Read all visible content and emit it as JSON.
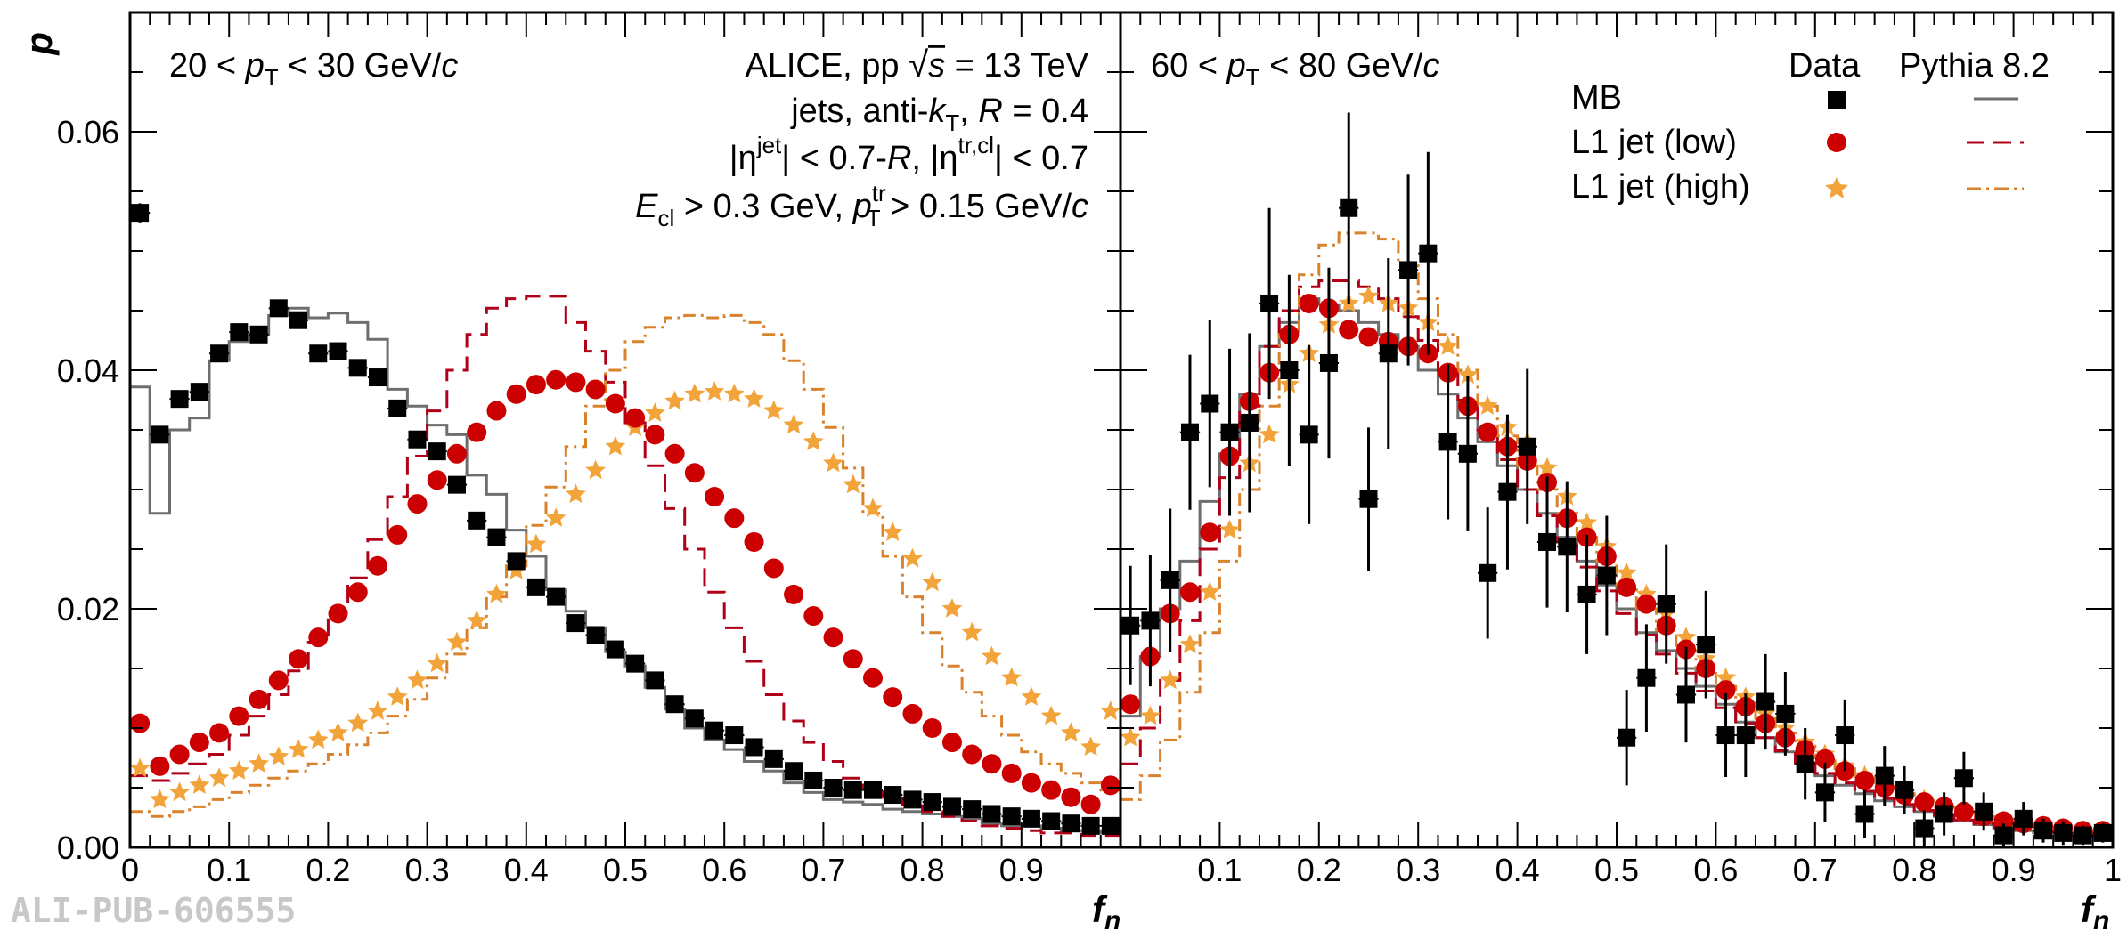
{
  "figure": {
    "watermark": "ALI-PUB-606555",
    "ylabel": "p",
    "xlabel_main": "f",
    "xlabel_sub": "n"
  },
  "annotations": {
    "left_range": "20 < pT < 30 GeV/c",
    "right_range": "60 < pT < 80 GeV/c",
    "experiment": "ALICE, pp √s = 13 TeV",
    "jets": "jets, anti-kT, R = 0.4",
    "eta": "|η^jet| < 0.7-R, |η^tr,cl| < 0.7",
    "cuts": "E_cl > 0.3 GeV, pT^tr > 0.15 GeV/c"
  },
  "legend": {
    "header_data": "Data",
    "header_mc": "Pythia 8.2",
    "entries": [
      "MB",
      "L1 jet (low)",
      "L1 jet (high)"
    ]
  },
  "colors": {
    "mb_data": "#000000",
    "mb_mc": "#6e6e6e",
    "low": "#cc0000",
    "low_mc": "#b00018",
    "high": "#f2a33a",
    "high_mc": "#d9822b"
  },
  "chart_data": [
    {
      "type": "scatter",
      "panel": "left",
      "ylabel": "p",
      "xlabel": "f_n",
      "xlim": [
        0,
        1
      ],
      "ylim": [
        0,
        0.07
      ],
      "x_ticks": [
        "0",
        "0.1",
        "0.2",
        "0.3",
        "0.4",
        "0.5",
        "0.6",
        "0.7",
        "0.8",
        "0.9"
      ],
      "y_ticks": [
        "0.00",
        "0.02",
        "0.04",
        "0.06"
      ],
      "bin_width": 0.02,
      "bin_centers": [
        0.01,
        0.03,
        0.05,
        0.07,
        0.09,
        0.11,
        0.13,
        0.15,
        0.17,
        0.19,
        0.21,
        0.23,
        0.25,
        0.27,
        0.29,
        0.31,
        0.33,
        0.35,
        0.37,
        0.39,
        0.41,
        0.43,
        0.45,
        0.47,
        0.49,
        0.51,
        0.53,
        0.55,
        0.57,
        0.59,
        0.61,
        0.63,
        0.65,
        0.67,
        0.69,
        0.71,
        0.73,
        0.75,
        0.77,
        0.79,
        0.81,
        0.83,
        0.85,
        0.87,
        0.89,
        0.91,
        0.93,
        0.95,
        0.97,
        0.99
      ],
      "series": [
        {
          "name": "MB",
          "kind": "data",
          "values": [
            0.0532,
            0.0346,
            0.0376,
            0.0382,
            0.0414,
            0.0432,
            0.043,
            0.0452,
            0.0442,
            0.0414,
            0.0416,
            0.0402,
            0.0394,
            0.0368,
            0.0342,
            0.0332,
            0.0304,
            0.0274,
            0.026,
            0.024,
            0.0218,
            0.021,
            0.0188,
            0.0178,
            0.0166,
            0.0154,
            0.014,
            0.012,
            0.0108,
            0.0098,
            0.0094,
            0.0084,
            0.0074,
            0.0064,
            0.0056,
            0.005,
            0.0048,
            0.0048,
            0.0044,
            0.004,
            0.0038,
            0.0034,
            0.0032,
            0.0028,
            0.0026,
            0.0024,
            0.0022,
            0.002,
            0.0018,
            0.0018
          ],
          "errors": [
            0.0008,
            0.0006,
            0.0006,
            0.0006,
            0.0006,
            0.0006,
            0.0006,
            0.0006,
            0.0006,
            0.0006,
            0.0006,
            0.0006,
            0.0005,
            0.0005,
            0.0005,
            0.0005,
            0.0005,
            0.0005,
            0.0005,
            0.0004,
            0.0004,
            0.0004,
            0.0004,
            0.0004,
            0.0004,
            0.0003,
            0.0003,
            0.0003,
            0.0003,
            0.0003,
            0.0003,
            0.0003,
            0.0003,
            0.0003,
            0.0003,
            0.0003,
            0.0003,
            0.0003,
            0.0003,
            0.0003,
            0.0003,
            0.0003,
            0.0003,
            0.0003,
            0.0003,
            0.0003,
            0.0003,
            0.0003,
            0.0003,
            0.0003
          ]
        },
        {
          "name": "L1 jet (low)",
          "kind": "data",
          "values": [
            0.0104,
            0.0068,
            0.0078,
            0.0088,
            0.0096,
            0.011,
            0.0124,
            0.014,
            0.0158,
            0.0176,
            0.0196,
            0.0214,
            0.0236,
            0.0262,
            0.0288,
            0.0308,
            0.033,
            0.0348,
            0.0366,
            0.038,
            0.0388,
            0.0392,
            0.039,
            0.0384,
            0.0372,
            0.036,
            0.0346,
            0.033,
            0.0314,
            0.0294,
            0.0276,
            0.0256,
            0.0234,
            0.0212,
            0.0194,
            0.0176,
            0.0158,
            0.0142,
            0.0126,
            0.0112,
            0.01,
            0.0088,
            0.0078,
            0.007,
            0.0062,
            0.0054,
            0.0048,
            0.0042,
            0.0036,
            0.0052
          ],
          "errors": []
        },
        {
          "name": "L1 jet (high)",
          "kind": "data",
          "values": [
            0.0066,
            0.004,
            0.0046,
            0.0052,
            0.0058,
            0.0064,
            0.007,
            0.0076,
            0.0082,
            0.009,
            0.0096,
            0.0104,
            0.0114,
            0.0126,
            0.014,
            0.0154,
            0.0172,
            0.019,
            0.0212,
            0.0232,
            0.0254,
            0.0276,
            0.0296,
            0.0316,
            0.0336,
            0.0352,
            0.0364,
            0.0374,
            0.038,
            0.0382,
            0.038,
            0.0376,
            0.0366,
            0.0354,
            0.034,
            0.0322,
            0.0304,
            0.0284,
            0.0264,
            0.0242,
            0.0222,
            0.02,
            0.018,
            0.016,
            0.0142,
            0.0126,
            0.011,
            0.0096,
            0.0084,
            0.0114
          ],
          "errors": []
        },
        {
          "name": "MB",
          "kind": "pythia",
          "values": [
            0.0386,
            0.028,
            0.035,
            0.036,
            0.0408,
            0.0424,
            0.043,
            0.0446,
            0.0452,
            0.0444,
            0.0448,
            0.044,
            0.0426,
            0.0384,
            0.037,
            0.0354,
            0.0346,
            0.0312,
            0.0296,
            0.0266,
            0.0244,
            0.0216,
            0.0198,
            0.0184,
            0.0164,
            0.0152,
            0.0134,
            0.0116,
            0.01,
            0.009,
            0.0082,
            0.0072,
            0.0064,
            0.0054,
            0.0046,
            0.004,
            0.0038,
            0.0036,
            0.0032,
            0.003,
            0.0028,
            0.0026,
            0.0024,
            0.002,
            0.0018,
            0.0018,
            0.0016,
            0.0014,
            0.0014,
            0.0012
          ]
        },
        {
          "name": "L1 jet (low)",
          "kind": "pythia",
          "values": [
            0.006,
            0.0056,
            0.0062,
            0.007,
            0.0078,
            0.0094,
            0.011,
            0.0128,
            0.0148,
            0.0172,
            0.0198,
            0.0226,
            0.0258,
            0.0294,
            0.0328,
            0.0366,
            0.04,
            0.043,
            0.0452,
            0.046,
            0.0462,
            0.0462,
            0.044,
            0.0416,
            0.039,
            0.0356,
            0.032,
            0.0284,
            0.025,
            0.0214,
            0.0184,
            0.0156,
            0.0128,
            0.0106,
            0.0088,
            0.0072,
            0.0058,
            0.005,
            0.0042,
            0.0036,
            0.003,
            0.0026,
            0.0022,
            0.0018,
            0.0016,
            0.0014,
            0.0012,
            0.0012,
            0.001,
            0.001
          ]
        },
        {
          "name": "L1 jet (high)",
          "kind": "pythia",
          "values": [
            0.003,
            0.0026,
            0.003,
            0.0034,
            0.004,
            0.0046,
            0.0052,
            0.0058,
            0.0064,
            0.007,
            0.0078,
            0.0086,
            0.0096,
            0.011,
            0.0124,
            0.0142,
            0.0162,
            0.0184,
            0.021,
            0.0236,
            0.027,
            0.0302,
            0.0336,
            0.037,
            0.04,
            0.0424,
            0.0436,
            0.0444,
            0.0446,
            0.0444,
            0.0446,
            0.044,
            0.043,
            0.0408,
            0.0384,
            0.0352,
            0.0318,
            0.028,
            0.0244,
            0.021,
            0.018,
            0.0152,
            0.013,
            0.011,
            0.0094,
            0.008,
            0.007,
            0.0062,
            0.0054,
            0.0048
          ]
        }
      ]
    },
    {
      "type": "scatter",
      "panel": "right",
      "ylabel": "p",
      "xlabel": "f_n",
      "xlim": [
        0,
        1
      ],
      "ylim": [
        0,
        0.07
      ],
      "x_ticks": [
        "0.1",
        "0.2",
        "0.3",
        "0.4",
        "0.5",
        "0.6",
        "0.7",
        "0.8",
        "0.9",
        "1"
      ],
      "bin_width": 0.02,
      "bin_centers": [
        0.01,
        0.03,
        0.05,
        0.07,
        0.09,
        0.11,
        0.13,
        0.15,
        0.17,
        0.19,
        0.21,
        0.23,
        0.25,
        0.27,
        0.29,
        0.31,
        0.33,
        0.35,
        0.37,
        0.39,
        0.41,
        0.43,
        0.45,
        0.47,
        0.49,
        0.51,
        0.53,
        0.55,
        0.57,
        0.59,
        0.61,
        0.63,
        0.65,
        0.67,
        0.69,
        0.71,
        0.73,
        0.75,
        0.77,
        0.79,
        0.81,
        0.83,
        0.85,
        0.87,
        0.89,
        0.91,
        0.93,
        0.95,
        0.97,
        0.99
      ],
      "series": [
        {
          "name": "MB",
          "kind": "data",
          "values": [
            0.0186,
            0.019,
            0.0224,
            0.0348,
            0.0372,
            0.0348,
            0.0356,
            0.0456,
            0.04,
            0.0346,
            0.0406,
            0.0536,
            0.0292,
            0.0414,
            0.0484,
            0.0498,
            0.034,
            0.033,
            0.023,
            0.0298,
            0.0336,
            0.0256,
            0.0252,
            0.0212,
            0.0228,
            0.0092,
            0.0142,
            0.0204,
            0.0128,
            0.017,
            0.0094,
            0.0094,
            0.0122,
            0.0112,
            0.007,
            0.0046,
            0.0094,
            0.0028,
            0.006,
            0.0048,
            0.0016,
            0.0028,
            0.0058,
            0.003,
            0.001,
            0.0024,
            0.0014,
            0.0012,
            0.001,
            0.0012
          ],
          "errors": [
            0.005,
            0.0055,
            0.006,
            0.0065,
            0.007,
            0.007,
            0.0075,
            0.008,
            0.008,
            0.0075,
            0.008,
            0.008,
            0.006,
            0.008,
            0.008,
            0.0085,
            0.0065,
            0.0065,
            0.0055,
            0.0065,
            0.0065,
            0.0055,
            0.0055,
            0.005,
            0.005,
            0.004,
            0.0045,
            0.005,
            0.004,
            0.0045,
            0.0035,
            0.0035,
            0.004,
            0.0035,
            0.003,
            0.0025,
            0.003,
            0.002,
            0.0025,
            0.002,
            0.0015,
            0.0018,
            0.0022,
            0.0016,
            0.001,
            0.0014,
            0.001,
            0.001,
            0.0008,
            0.0008
          ]
        },
        {
          "name": "L1 jet (low)",
          "kind": "data",
          "values": [
            0.012,
            0.016,
            0.0196,
            0.0214,
            0.0264,
            0.0328,
            0.0374,
            0.0398,
            0.043,
            0.0456,
            0.0452,
            0.0434,
            0.0428,
            0.0424,
            0.042,
            0.0414,
            0.0398,
            0.037,
            0.0348,
            0.0336,
            0.0324,
            0.0306,
            0.0276,
            0.026,
            0.0244,
            0.0218,
            0.0204,
            0.0186,
            0.0166,
            0.015,
            0.0132,
            0.0118,
            0.0104,
            0.0092,
            0.0082,
            0.0074,
            0.0064,
            0.0056,
            0.005,
            0.0044,
            0.0038,
            0.0034,
            0.003,
            0.0026,
            0.0022,
            0.002,
            0.0018,
            0.0016,
            0.0014,
            0.0014
          ],
          "errors": []
        },
        {
          "name": "L1 jet (high)",
          "kind": "data",
          "values": [
            0.0092,
            0.011,
            0.014,
            0.017,
            0.0214,
            0.0266,
            0.0322,
            0.0346,
            0.0388,
            0.0414,
            0.0438,
            0.0456,
            0.0462,
            0.0456,
            0.0452,
            0.044,
            0.042,
            0.0396,
            0.037,
            0.0352,
            0.034,
            0.0318,
            0.0294,
            0.0272,
            0.0252,
            0.023,
            0.0212,
            0.0196,
            0.0176,
            0.0158,
            0.0142,
            0.0126,
            0.0112,
            0.01,
            0.0088,
            0.0078,
            0.0068,
            0.006,
            0.0052,
            0.0046,
            0.004,
            0.0034,
            0.003,
            0.0026,
            0.0022,
            0.002,
            0.0018,
            0.0016,
            0.0014,
            0.0014
          ],
          "errors": []
        },
        {
          "name": "MB",
          "kind": "pythia",
          "values": [
            0.011,
            0.016,
            0.02,
            0.024,
            0.029,
            0.033,
            0.038,
            0.042,
            0.044,
            0.046,
            0.0455,
            0.045,
            0.044,
            0.043,
            0.042,
            0.04,
            0.038,
            0.036,
            0.034,
            0.032,
            0.03,
            0.028,
            0.026,
            0.024,
            0.022,
            0.02,
            0.018,
            0.0165,
            0.015,
            0.0135,
            0.012,
            0.0105,
            0.0092,
            0.008,
            0.007,
            0.006,
            0.0052,
            0.0045,
            0.0039,
            0.0034,
            0.003,
            0.0026,
            0.0022,
            0.0019,
            0.0016,
            0.0014,
            0.0012,
            0.0011,
            0.001,
            0.0009
          ]
        },
        {
          "name": "L1 jet (low)",
          "kind": "pythia",
          "values": [
            0.007,
            0.01,
            0.014,
            0.019,
            0.025,
            0.031,
            0.037,
            0.042,
            0.045,
            0.047,
            0.0475,
            0.0475,
            0.047,
            0.046,
            0.0445,
            0.0425,
            0.04,
            0.0375,
            0.035,
            0.0325,
            0.03,
            0.0278,
            0.0256,
            0.0235,
            0.0215,
            0.0196,
            0.0178,
            0.0162,
            0.0146,
            0.0131,
            0.0117,
            0.0104,
            0.0092,
            0.0081,
            0.0071,
            0.0062,
            0.0054,
            0.0047,
            0.0041,
            0.0036,
            0.0031,
            0.0027,
            0.0023,
            0.002,
            0.0017,
            0.0015,
            0.0013,
            0.0012,
            0.0011,
            0.001
          ]
        },
        {
          "name": "L1 jet (high)",
          "kind": "pythia",
          "values": [
            0.004,
            0.006,
            0.009,
            0.013,
            0.018,
            0.024,
            0.03,
            0.037,
            0.043,
            0.048,
            0.0505,
            0.0515,
            0.0515,
            0.051,
            0.049,
            0.046,
            0.043,
            0.04,
            0.037,
            0.0345,
            0.032,
            0.03,
            0.028,
            0.026,
            0.024,
            0.022,
            0.02,
            0.0182,
            0.0165,
            0.015,
            0.0135,
            0.0121,
            0.0108,
            0.0096,
            0.0085,
            0.0075,
            0.0066,
            0.0058,
            0.0051,
            0.0045,
            0.0039,
            0.0034,
            0.003,
            0.0026,
            0.0022,
            0.0019,
            0.0017,
            0.0015,
            0.0013,
            0.0012
          ]
        }
      ]
    }
  ]
}
